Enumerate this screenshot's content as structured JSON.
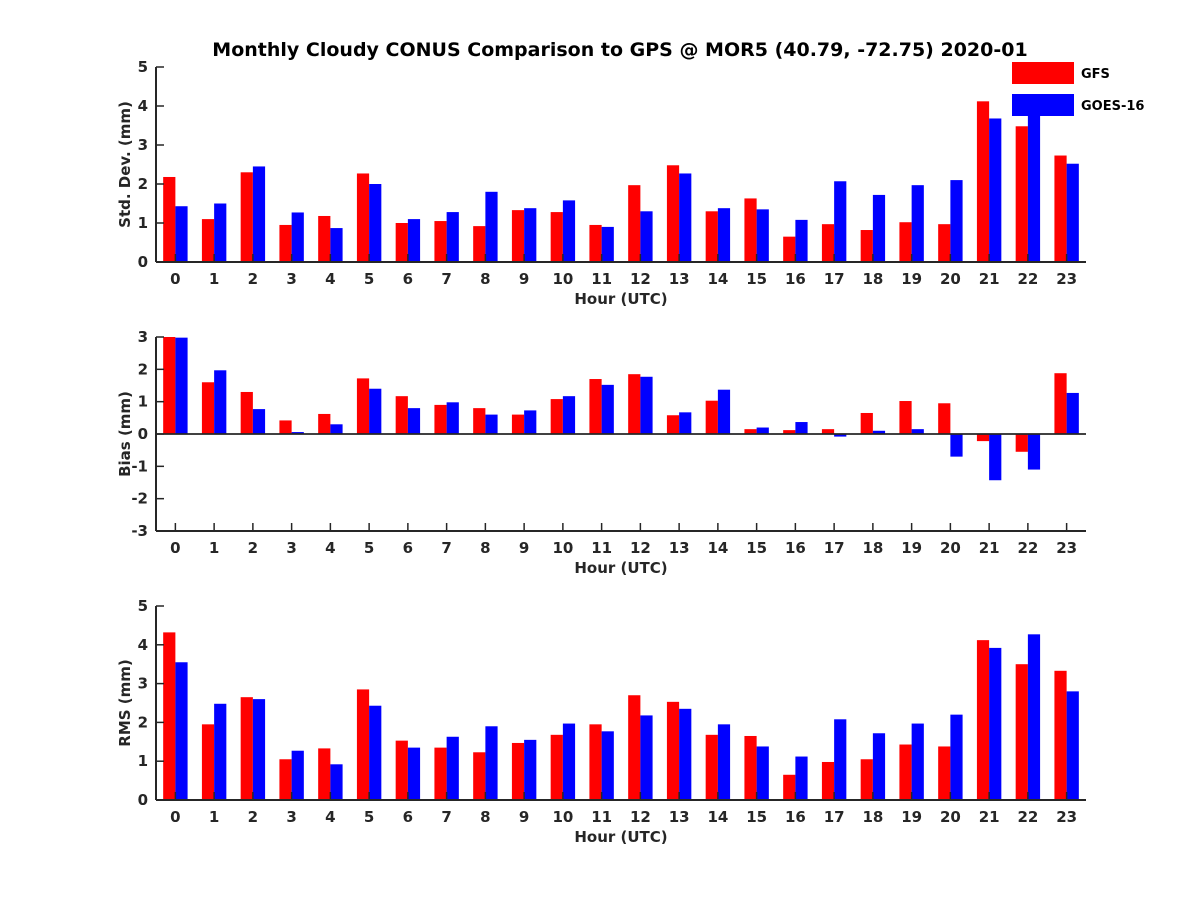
{
  "title": "Monthly Cloudy CONUS Comparison to GPS @ MOR5 (40.79, -72.75) 2020-01",
  "legend": [
    {
      "name": "GFS",
      "color": "#ff0000"
    },
    {
      "name": "GOES-16",
      "color": "#0000ff"
    }
  ],
  "chart_data": [
    {
      "type": "bar",
      "xlabel": "Hour (UTC)",
      "ylabel": "Std. Dev. (mm)",
      "ylim": [
        0,
        5
      ],
      "yticks": [
        "0",
        "1",
        "2",
        "3",
        "4",
        "5"
      ],
      "categories": [
        "0",
        "1",
        "2",
        "3",
        "4",
        "5",
        "6",
        "7",
        "8",
        "9",
        "10",
        "11",
        "12",
        "13",
        "14",
        "15",
        "16",
        "17",
        "18",
        "19",
        "20",
        "21",
        "22",
        "23"
      ],
      "series": [
        {
          "name": "GFS",
          "color": "#ff0000",
          "values": [
            2.18,
            1.1,
            2.3,
            0.95,
            1.18,
            2.27,
            1.0,
            1.05,
            0.92,
            1.33,
            1.28,
            0.95,
            1.97,
            2.48,
            1.3,
            1.63,
            0.65,
            0.97,
            0.82,
            1.02,
            0.97,
            4.12,
            3.48,
            2.73
          ]
        },
        {
          "name": "GOES-16",
          "color": "#0000ff",
          "values": [
            1.43,
            1.5,
            2.45,
            1.27,
            0.87,
            2.0,
            1.1,
            1.28,
            1.8,
            1.38,
            1.58,
            0.9,
            1.3,
            2.27,
            1.38,
            1.35,
            1.08,
            2.07,
            1.72,
            1.97,
            2.1,
            3.68,
            4.12,
            2.52
          ]
        }
      ]
    },
    {
      "type": "bar",
      "xlabel": "Hour (UTC)",
      "ylabel": "Bias (mm)",
      "ylim": [
        -3,
        3
      ],
      "yticks": [
        "-3",
        "-2",
        "-1",
        "0",
        "1",
        "2",
        "3"
      ],
      "categories": [
        "0",
        "1",
        "2",
        "3",
        "4",
        "5",
        "6",
        "7",
        "8",
        "9",
        "10",
        "11",
        "12",
        "13",
        "14",
        "15",
        "16",
        "17",
        "18",
        "19",
        "20",
        "21",
        "22",
        "23"
      ],
      "series": [
        {
          "name": "GFS",
          "color": "#ff0000",
          "values": [
            3.0,
            1.6,
            1.3,
            0.42,
            0.62,
            1.72,
            1.17,
            0.9,
            0.8,
            0.6,
            1.08,
            1.7,
            1.85,
            0.58,
            1.03,
            0.15,
            0.12,
            0.15,
            0.65,
            1.02,
            0.95,
            -0.22,
            -0.55,
            1.88
          ]
        },
        {
          "name": "GOES-16",
          "color": "#0000ff",
          "values": [
            2.98,
            1.97,
            0.77,
            0.06,
            0.3,
            1.4,
            0.8,
            0.98,
            0.6,
            0.73,
            1.17,
            1.52,
            1.77,
            0.67,
            1.37,
            0.2,
            0.37,
            -0.08,
            0.1,
            0.15,
            -0.7,
            -1.43,
            -1.1,
            1.27
          ]
        }
      ]
    },
    {
      "type": "bar",
      "xlabel": "Hour (UTC)",
      "ylabel": "RMS (mm)",
      "ylim": [
        0,
        5
      ],
      "yticks": [
        "0",
        "1",
        "2",
        "3",
        "4",
        "5"
      ],
      "categories": [
        "0",
        "1",
        "2",
        "3",
        "4",
        "5",
        "6",
        "7",
        "8",
        "9",
        "10",
        "11",
        "12",
        "13",
        "14",
        "15",
        "16",
        "17",
        "18",
        "19",
        "20",
        "21",
        "22",
        "23"
      ],
      "series": [
        {
          "name": "GFS",
          "color": "#ff0000",
          "values": [
            4.32,
            1.95,
            2.65,
            1.05,
            1.33,
            2.85,
            1.53,
            1.35,
            1.23,
            1.47,
            1.68,
            1.95,
            2.7,
            2.53,
            1.68,
            1.65,
            0.65,
            0.98,
            1.05,
            1.43,
            1.38,
            4.12,
            3.5,
            3.33
          ]
        },
        {
          "name": "GOES-16",
          "color": "#0000ff",
          "values": [
            3.55,
            2.48,
            2.6,
            1.27,
            0.92,
            2.43,
            1.35,
            1.63,
            1.9,
            1.55,
            1.97,
            1.77,
            2.18,
            2.35,
            1.95,
            1.38,
            1.12,
            2.08,
            1.72,
            1.97,
            2.2,
            3.92,
            4.27,
            2.8
          ]
        }
      ]
    }
  ]
}
